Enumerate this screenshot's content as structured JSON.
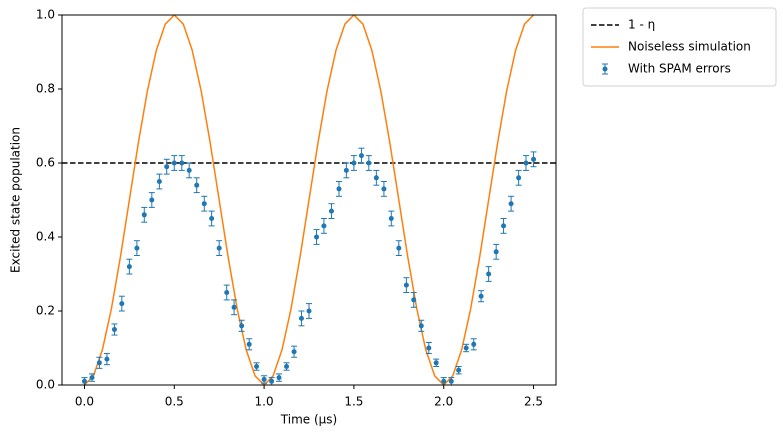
{
  "chart_data": {
    "type": "errorbar",
    "xlabel": "Time (μs)",
    "ylabel": "Excited state population",
    "xlim": [
      -0.125,
      2.625
    ],
    "ylim": [
      0,
      1
    ],
    "xticks": [
      {
        "value": 0,
        "label": "0.0"
      },
      0.5,
      {
        "value": 1,
        "label": "1.0"
      },
      1.5,
      {
        "value": 2,
        "label": "2.0"
      },
      2.5
    ],
    "yticks": [
      {
        "value": 0,
        "label": "0.0"
      },
      0.2,
      0.4,
      0.6,
      0.8,
      {
        "value": 1,
        "label": "1.0"
      }
    ],
    "legend": "outside-upper-right",
    "series": [
      {
        "name": "1 - η",
        "type": "hline",
        "color": "#000000",
        "linestyle": "dashed",
        "value": 0.6
      },
      {
        "name": "Noiseless simulation",
        "type": "line",
        "color": "#ff7f0e",
        "x": [
          0,
          0.05,
          0.1,
          0.15,
          0.2,
          0.25,
          0.3,
          0.35,
          0.4,
          0.45,
          0.5,
          0.55,
          0.6,
          0.65,
          0.7,
          0.75,
          0.8,
          0.85,
          0.9,
          0.95,
          1,
          1.05,
          1.1,
          1.15,
          1.2,
          1.25,
          1.3,
          1.35,
          1.4,
          1.45,
          1.5,
          1.55,
          1.6,
          1.65,
          1.7,
          1.75,
          1.8,
          1.85,
          1.9,
          1.95,
          2,
          2.05,
          2.1,
          2.15,
          2.2,
          2.25,
          2.3,
          2.35,
          2.4,
          2.45,
          2.5
        ],
        "values": [
          0,
          0.0245,
          0.0955,
          0.2061,
          0.3455,
          0.5,
          0.6545,
          0.7939,
          0.9045,
          0.9755,
          1,
          0.9755,
          0.9045,
          0.7939,
          0.6545,
          0.5,
          0.3455,
          0.2061,
          0.0955,
          0.0245,
          0,
          0.0245,
          0.0955,
          0.2061,
          0.3455,
          0.5,
          0.6545,
          0.7939,
          0.9045,
          0.9755,
          1,
          0.9755,
          0.9045,
          0.7939,
          0.6545,
          0.5,
          0.3455,
          0.2061,
          0.0955,
          0.0245,
          0,
          0.0245,
          0.0955,
          0.2061,
          0.3455,
          0.5,
          0.6545,
          0.7939,
          0.9045,
          0.9755,
          1
        ]
      },
      {
        "name": "With SPAM errors",
        "type": "errorbar",
        "color": "#1f77b4",
        "x": [
          0,
          0.042,
          0.083,
          0.125,
          0.167,
          0.208,
          0.25,
          0.292,
          0.333,
          0.375,
          0.417,
          0.458,
          0.5,
          0.542,
          0.583,
          0.625,
          0.667,
          0.708,
          0.75,
          0.792,
          0.833,
          0.875,
          0.917,
          0.958,
          1,
          1.042,
          1.083,
          1.125,
          1.167,
          1.208,
          1.25,
          1.292,
          1.333,
          1.375,
          1.417,
          1.458,
          1.5,
          1.542,
          1.583,
          1.625,
          1.667,
          1.708,
          1.75,
          1.792,
          1.833,
          1.875,
          1.917,
          1.958,
          2,
          2.042,
          2.083,
          2.125,
          2.167,
          2.208,
          2.25,
          2.292,
          2.333,
          2.375,
          2.417,
          2.458,
          2.5
        ],
        "values": [
          0.01,
          0.02,
          0.06,
          0.07,
          0.15,
          0.22,
          0.32,
          0.37,
          0.46,
          0.5,
          0.55,
          0.59,
          0.6,
          0.6,
          0.58,
          0.54,
          0.49,
          0.45,
          0.37,
          0.25,
          0.21,
          0.16,
          0.11,
          0.05,
          0.015,
          0.01,
          0.02,
          0.05,
          0.09,
          0.18,
          0.2,
          0.4,
          0.43,
          0.47,
          0.53,
          0.58,
          0.6,
          0.62,
          0.6,
          0.56,
          0.53,
          0.45,
          0.37,
          0.27,
          0.23,
          0.16,
          0.1,
          0.06,
          0.01,
          0.01,
          0.04,
          0.1,
          0.11,
          0.24,
          0.3,
          0.36,
          0.43,
          0.49,
          0.56,
          0.6,
          0.61
        ],
        "errors": [
          0.01,
          0.01,
          0.015,
          0.015,
          0.015,
          0.02,
          0.02,
          0.02,
          0.02,
          0.02,
          0.02,
          0.02,
          0.02,
          0.02,
          0.02,
          0.02,
          0.02,
          0.02,
          0.02,
          0.02,
          0.02,
          0.015,
          0.015,
          0.01,
          0.01,
          0.01,
          0.01,
          0.01,
          0.015,
          0.02,
          0.02,
          0.02,
          0.02,
          0.02,
          0.02,
          0.02,
          0.02,
          0.02,
          0.02,
          0.02,
          0.02,
          0.02,
          0.02,
          0.02,
          0.02,
          0.015,
          0.015,
          0.01,
          0.01,
          0.01,
          0.01,
          0.01,
          0.015,
          0.015,
          0.02,
          0.02,
          0.02,
          0.02,
          0.02,
          0.02,
          0.02
        ]
      }
    ]
  }
}
